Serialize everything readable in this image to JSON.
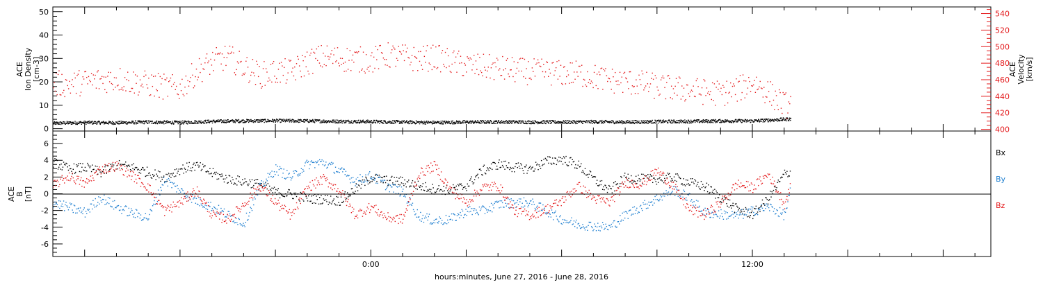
{
  "x_axis": {
    "label": "hours:minutes, June 27, 2016 - June 28, 2016",
    "ticks": [
      {
        "value": 0,
        "label": "0:00"
      },
      {
        "value": 12,
        "label": "12:00"
      }
    ],
    "range_hours": [
      -10,
      19.5
    ]
  },
  "chart_data": [
    {
      "type": "scatter",
      "panel": "top",
      "left_axis": {
        "label_lines": [
          "ACE",
          "Ion Density",
          "[cm-3]"
        ],
        "ylim": [
          -1,
          52
        ],
        "ticks": [
          0,
          10,
          20,
          30,
          40,
          50
        ]
      },
      "right_axis": {
        "label_lines": [
          "ACE",
          "Velocity",
          "[km/s]"
        ],
        "ylim": [
          398,
          548
        ],
        "ticks": [
          400,
          420,
          440,
          460,
          480,
          500,
          520,
          540
        ],
        "color": "#e41a1c"
      },
      "series": [
        {
          "name": "Ion Density",
          "axis": "left",
          "color": "#000000",
          "x": [
            -10,
            -9,
            -8,
            -7,
            -6,
            -5,
            -4,
            -3,
            -2,
            -1,
            0,
            1,
            2,
            3,
            4,
            5,
            6,
            7,
            8,
            9,
            10,
            11,
            12,
            13.2
          ],
          "y": [
            2.5,
            2.8,
            2.7,
            3.0,
            2.8,
            3.3,
            3.5,
            3.6,
            3.5,
            3.3,
            3.2,
            3.0,
            2.8,
            3.0,
            3.1,
            3.0,
            3.0,
            3.1,
            3.0,
            3.2,
            3.3,
            3.5,
            3.5,
            4.3
          ]
        },
        {
          "name": "Velocity",
          "axis": "right",
          "color": "#e41a1c",
          "x": [
            -10,
            -9.5,
            -9,
            -8.5,
            -8,
            -7.5,
            -7,
            -6.5,
            -6,
            -5.5,
            -5,
            -4.5,
            -4,
            -3.5,
            -3,
            -2.5,
            -2,
            -1.5,
            -1,
            -0.5,
            0,
            0.5,
            1,
            1.5,
            2,
            2.5,
            3,
            3.5,
            4,
            4.5,
            5,
            5.5,
            6,
            6.5,
            7,
            7.5,
            8,
            8.5,
            9,
            9.5,
            10,
            10.5,
            11,
            11.5,
            12,
            12.5,
            13,
            13.2
          ],
          "y": [
            456,
            455,
            458,
            460,
            462,
            458,
            455,
            452,
            450,
            470,
            482,
            488,
            476,
            466,
            470,
            470,
            482,
            488,
            486,
            485,
            484,
            490,
            488,
            485,
            488,
            482,
            478,
            476,
            474,
            472,
            470,
            470,
            468,
            468,
            464,
            460,
            458,
            456,
            452,
            450,
            448,
            446,
            444,
            448,
            458,
            445,
            430,
            428
          ]
        }
      ]
    },
    {
      "type": "scatter",
      "panel": "bottom",
      "left_axis": {
        "label_lines": [
          "ACE",
          "B",
          "[nT]"
        ],
        "ylim": [
          -7.5,
          7.5
        ],
        "ticks": [
          -6,
          -4,
          -2,
          0,
          2,
          4,
          6
        ]
      },
      "legend": [
        {
          "label": "Bx",
          "color": "#000000"
        },
        {
          "label": "By",
          "color": "#1f7fd0"
        },
        {
          "label": "Bz",
          "color": "#e41a1c"
        }
      ],
      "series": [
        {
          "name": "Bx",
          "color": "#000000",
          "x": [
            -10,
            -9.5,
            -9,
            -8.5,
            -8,
            -7.5,
            -7,
            -6.5,
            -6,
            -5.5,
            -5,
            -4.5,
            -4,
            -3.5,
            -3,
            -2.5,
            -2,
            -1.5,
            -1,
            -0.5,
            0,
            0.5,
            1,
            1.5,
            2,
            2.5,
            3,
            3.5,
            4,
            4.5,
            5,
            5.5,
            6,
            6.5,
            7,
            7.5,
            8,
            8.5,
            9,
            9.5,
            10,
            10.5,
            11,
            11.5,
            12,
            12.5,
            13,
            13.2
          ],
          "y": [
            3.8,
            3.0,
            3.2,
            2.6,
            3.5,
            3.2,
            2.6,
            2.0,
            3.0,
            3.4,
            2.5,
            1.8,
            1.5,
            1.2,
            0.2,
            0.0,
            -0.5,
            -0.6,
            -0.8,
            0.6,
            2.0,
            1.6,
            1.5,
            1.0,
            0.6,
            0.5,
            1.0,
            2.8,
            3.6,
            3.2,
            3.0,
            3.9,
            4.2,
            3.5,
            1.8,
            0.4,
            2.0,
            1.8,
            1.8,
            2.0,
            1.4,
            0.9,
            -0.4,
            -1.8,
            -2.4,
            -0.5,
            2.4,
            2.6
          ]
        },
        {
          "name": "By",
          "color": "#1f7fd0",
          "x": [
            -10,
            -9.5,
            -9,
            -8.5,
            -8,
            -7.5,
            -7,
            -6.5,
            -6,
            -5.5,
            -5,
            -4.5,
            -4,
            -3.5,
            -3,
            -2.5,
            -2,
            -1.5,
            -1,
            -0.5,
            0,
            0.5,
            1,
            1.5,
            2,
            2.5,
            3,
            3.5,
            4,
            4.5,
            5,
            5.5,
            6,
            6.5,
            7,
            7.5,
            8,
            8.5,
            9,
            9.5,
            10,
            10.5,
            11,
            11.5,
            12,
            12.5,
            13,
            13.2
          ],
          "y": [
            -1.0,
            -1.6,
            -2.2,
            -0.4,
            -1.5,
            -2.3,
            -2.8,
            1.8,
            0.4,
            -0.8,
            -1.5,
            -2.5,
            -3.5,
            0.8,
            3.0,
            2.0,
            3.6,
            3.8,
            2.8,
            1.6,
            2.2,
            1.0,
            0.2,
            -2.6,
            -3.2,
            -3.0,
            -2.0,
            -2.0,
            -1.2,
            -1.0,
            -1.0,
            -2.0,
            -3.0,
            -3.6,
            -3.8,
            -4.0,
            -2.5,
            -1.5,
            -0.5,
            0.5,
            -0.4,
            -2.2,
            -2.4,
            -2.6,
            -2.0,
            -1.5,
            -2.5,
            0.6
          ]
        },
        {
          "name": "Bz",
          "color": "#e41a1c",
          "x": [
            -10,
            -9.5,
            -9,
            -8.5,
            -8,
            -7.5,
            -7,
            -6.5,
            -6,
            -5.5,
            -5,
            -4.5,
            -4,
            -3.5,
            -3,
            -2.5,
            -2,
            -1.5,
            -1,
            -0.5,
            0,
            0.5,
            1,
            1.5,
            2,
            2.5,
            3,
            3.5,
            4,
            4.5,
            5,
            5.5,
            6,
            6.5,
            7,
            7.5,
            8,
            8.5,
            9,
            9.5,
            10,
            10.5,
            11,
            11.5,
            12,
            12.5,
            13,
            13.2
          ],
          "y": [
            1.0,
            2.2,
            1.2,
            3.0,
            3.4,
            2.2,
            0.8,
            -2.0,
            -1.0,
            0.5,
            -2.5,
            -3.0,
            -1.2,
            1.0,
            -1.0,
            -2.6,
            0.8,
            1.8,
            0.5,
            -2.5,
            -1.5,
            -2.8,
            -3.0,
            2.4,
            3.4,
            0.5,
            -1.0,
            0.8,
            1.0,
            -2.0,
            -2.5,
            -1.8,
            -0.8,
            1.0,
            -0.5,
            -1.0,
            1.4,
            1.2,
            2.8,
            1.0,
            -1.8,
            -2.5,
            -1.0,
            1.2,
            0.8,
            2.4,
            -1.2,
            1.0
          ]
        }
      ]
    }
  ]
}
